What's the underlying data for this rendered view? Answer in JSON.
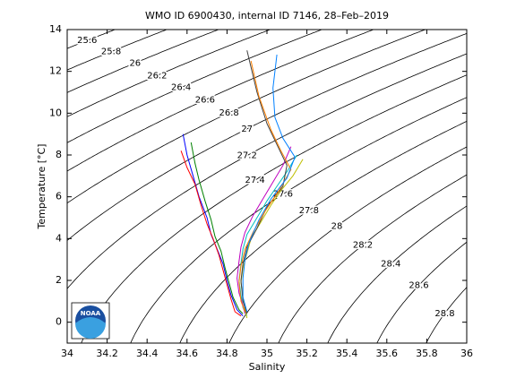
{
  "chart_data": {
    "type": "ts-diagram",
    "title": "WMO ID 6900430, internal ID 7146, 28–Feb–2019",
    "x_label": "Salinity",
    "y_label": "Temperature [°C]",
    "logo_text": "NOAA",
    "xlim": [
      34,
      36
    ],
    "ylim": [
      -1,
      14
    ],
    "xticks": [
      34,
      34.2,
      34.4,
      34.6,
      34.8,
      35,
      35.2,
      35.4,
      35.6,
      35.8,
      36
    ],
    "yticks": [
      0,
      2,
      4,
      6,
      8,
      10,
      12,
      14
    ],
    "contours": [
      25.6,
      25.8,
      26,
      26.2,
      26.4,
      26.6,
      26.8,
      27,
      27.2,
      27.4,
      27.6,
      27.8,
      28,
      28.2,
      28.4,
      28.6,
      28.8
    ],
    "contour_color": "#000000",
    "series": [
      {
        "color": "#0000ff",
        "x": [
          34.58,
          34.6,
          34.63,
          34.66,
          34.7,
          34.72,
          34.75,
          34.78,
          34.8,
          34.82,
          34.85,
          34.88
        ],
        "y": [
          9,
          8,
          7,
          6,
          5,
          4.2,
          3.5,
          2.8,
          2,
          1.3,
          0.6,
          0.3
        ]
      },
      {
        "color": "#008000",
        "x": [
          34.62,
          34.64,
          34.66,
          34.69,
          34.72,
          34.74,
          34.77,
          34.79,
          34.81,
          34.83,
          34.86,
          34.88
        ],
        "y": [
          8.6,
          7.6,
          6.8,
          5.8,
          4.9,
          4.1,
          3.4,
          2.6,
          1.9,
          1.2,
          0.6,
          0.4
        ]
      },
      {
        "color": "#ff0000",
        "x": [
          34.57,
          34.6,
          34.64,
          34.67,
          34.7,
          34.73,
          34.76,
          34.78,
          34.8,
          34.82,
          34.84,
          34.87
        ],
        "y": [
          8.2,
          7.4,
          6.6,
          5.6,
          4.7,
          4,
          3.2,
          2.5,
          1.8,
          1.1,
          0.5,
          0.3
        ]
      },
      {
        "color": "#00bfbf",
        "x": [
          35.15,
          35.1,
          35.05,
          35,
          34.95,
          34.9,
          34.88,
          34.87,
          34.86,
          34.87,
          34.88,
          34.9
        ],
        "y": [
          8,
          7.2,
          6.5,
          5.8,
          5,
          4.2,
          3.5,
          2.8,
          2,
          1.3,
          0.7,
          0.3
        ]
      },
      {
        "color": "#bf00bf",
        "x": [
          35.12,
          35.08,
          35.03,
          34.98,
          34.93,
          34.89,
          34.87,
          34.86,
          34.85,
          34.86,
          34.88,
          34.89
        ],
        "y": [
          8.4,
          7.5,
          6.7,
          5.9,
          5.1,
          4.3,
          3.6,
          2.9,
          2.1,
          1.4,
          0.8,
          0.4
        ]
      },
      {
        "color": "#bfbf00",
        "x": [
          35.18,
          35.13,
          35.07,
          35.02,
          34.97,
          34.92,
          34.9,
          34.88,
          34.87,
          34.88,
          34.89,
          34.9
        ],
        "y": [
          7.8,
          7,
          6.3,
          5.6,
          4.8,
          4,
          3.3,
          2.6,
          1.9,
          1.2,
          0.6,
          0.2
        ]
      },
      {
        "color": "#404040",
        "x": [
          34.9,
          34.95,
          35,
          35.05,
          35.1,
          35.08,
          35,
          34.95,
          34.9,
          34.88,
          34.87,
          34.88,
          34.9
        ],
        "y": [
          13,
          11,
          9.5,
          8.5,
          7.5,
          6.5,
          5.5,
          4.5,
          3.6,
          2.8,
          2,
          1,
          0.4
        ]
      },
      {
        "color": "#ff8000",
        "x": [
          34.92,
          34.96,
          35.02,
          35.07,
          35.12,
          35.06,
          34.99,
          34.93,
          34.89,
          34.87,
          34.86,
          34.87,
          34.89
        ],
        "y": [
          12.5,
          10.8,
          9.2,
          8.2,
          7.3,
          6.3,
          5.3,
          4.3,
          3.5,
          2.7,
          1.9,
          1,
          0.5
        ]
      },
      {
        "color": "#0080ff",
        "x": [
          35.05,
          35.03,
          35.04,
          35.08,
          35.14,
          35.1,
          35.02,
          34.96,
          34.91,
          34.89,
          34.88,
          34.88,
          34.9
        ],
        "y": [
          12.8,
          11.2,
          9.8,
          8.8,
          7.9,
          6.9,
          5.9,
          4.9,
          3.8,
          3,
          2.1,
          1.2,
          0.5
        ]
      }
    ]
  }
}
